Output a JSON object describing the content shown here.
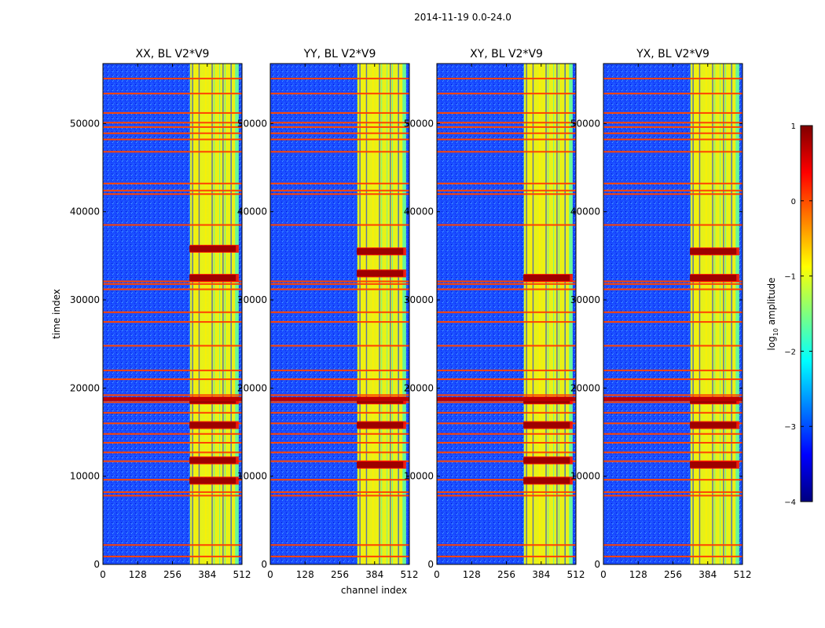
{
  "figure": {
    "suptitle": "2014-11-19 0.0-24.0"
  },
  "chart_data": {
    "type": "heatmap",
    "xlabel": "channel index",
    "ylabel": "time index",
    "xlim": [
      0,
      512
    ],
    "ylim": [
      0,
      56800
    ],
    "xticks": [
      0,
      128,
      256,
      384,
      512
    ],
    "yticks": [
      0,
      10000,
      20000,
      30000,
      40000,
      50000
    ],
    "colormap": "jet",
    "colorbar": {
      "label": "log",
      "label_sub": "10",
      "label_suffix": " amplitude",
      "min": -4,
      "max": 1,
      "ticks": [
        1,
        0,
        -1,
        -2,
        -3,
        -4
      ],
      "tick_labels": [
        "1",
        "0",
        "−1",
        "−2",
        "−3",
        "−4"
      ],
      "colors": [
        "#00007f",
        "#0000ff",
        "#007fff",
        "#00ffff",
        "#7fff7f",
        "#ffff00",
        "#ff7f00",
        "#ff0000",
        "#7f0000"
      ]
    },
    "panels": [
      {
        "title": "XX, BL V2*V9",
        "strong_band_times": [
          9500,
          11800,
          15800,
          18600,
          32500,
          35800
        ],
        "background_log_amp": -3.0
      },
      {
        "title": "YY, BL V2*V9",
        "strong_band_times": [
          11300,
          15800,
          18600,
          33000,
          35500
        ],
        "background_log_amp": -3.0
      },
      {
        "title": "XY, BL V2*V9",
        "strong_band_times": [
          9500,
          11800,
          15800,
          18600,
          32500
        ],
        "background_log_amp": -3.0
      },
      {
        "title": "YX, BL V2*V9",
        "strong_band_times": [
          11300,
          15800,
          18600,
          32500,
          35500
        ],
        "background_log_amp": -3.0
      }
    ],
    "flag_lines_time": [
      900,
      2200,
      7800,
      8200,
      9600,
      11700,
      12700,
      13800,
      14800,
      16000,
      17200,
      18400,
      19200,
      21000,
      22000,
      24800,
      27500,
      28600,
      31200,
      31800,
      32100,
      38500,
      42000,
      42400,
      43200,
      46800,
      48200,
      48900,
      49600,
      50100,
      51200,
      53400,
      55100
    ],
    "bright_channel_range": [
      320,
      500
    ],
    "bright_channel_columns": [
      330,
      345,
      355,
      372,
      385,
      400,
      420,
      440,
      460,
      478
    ]
  }
}
